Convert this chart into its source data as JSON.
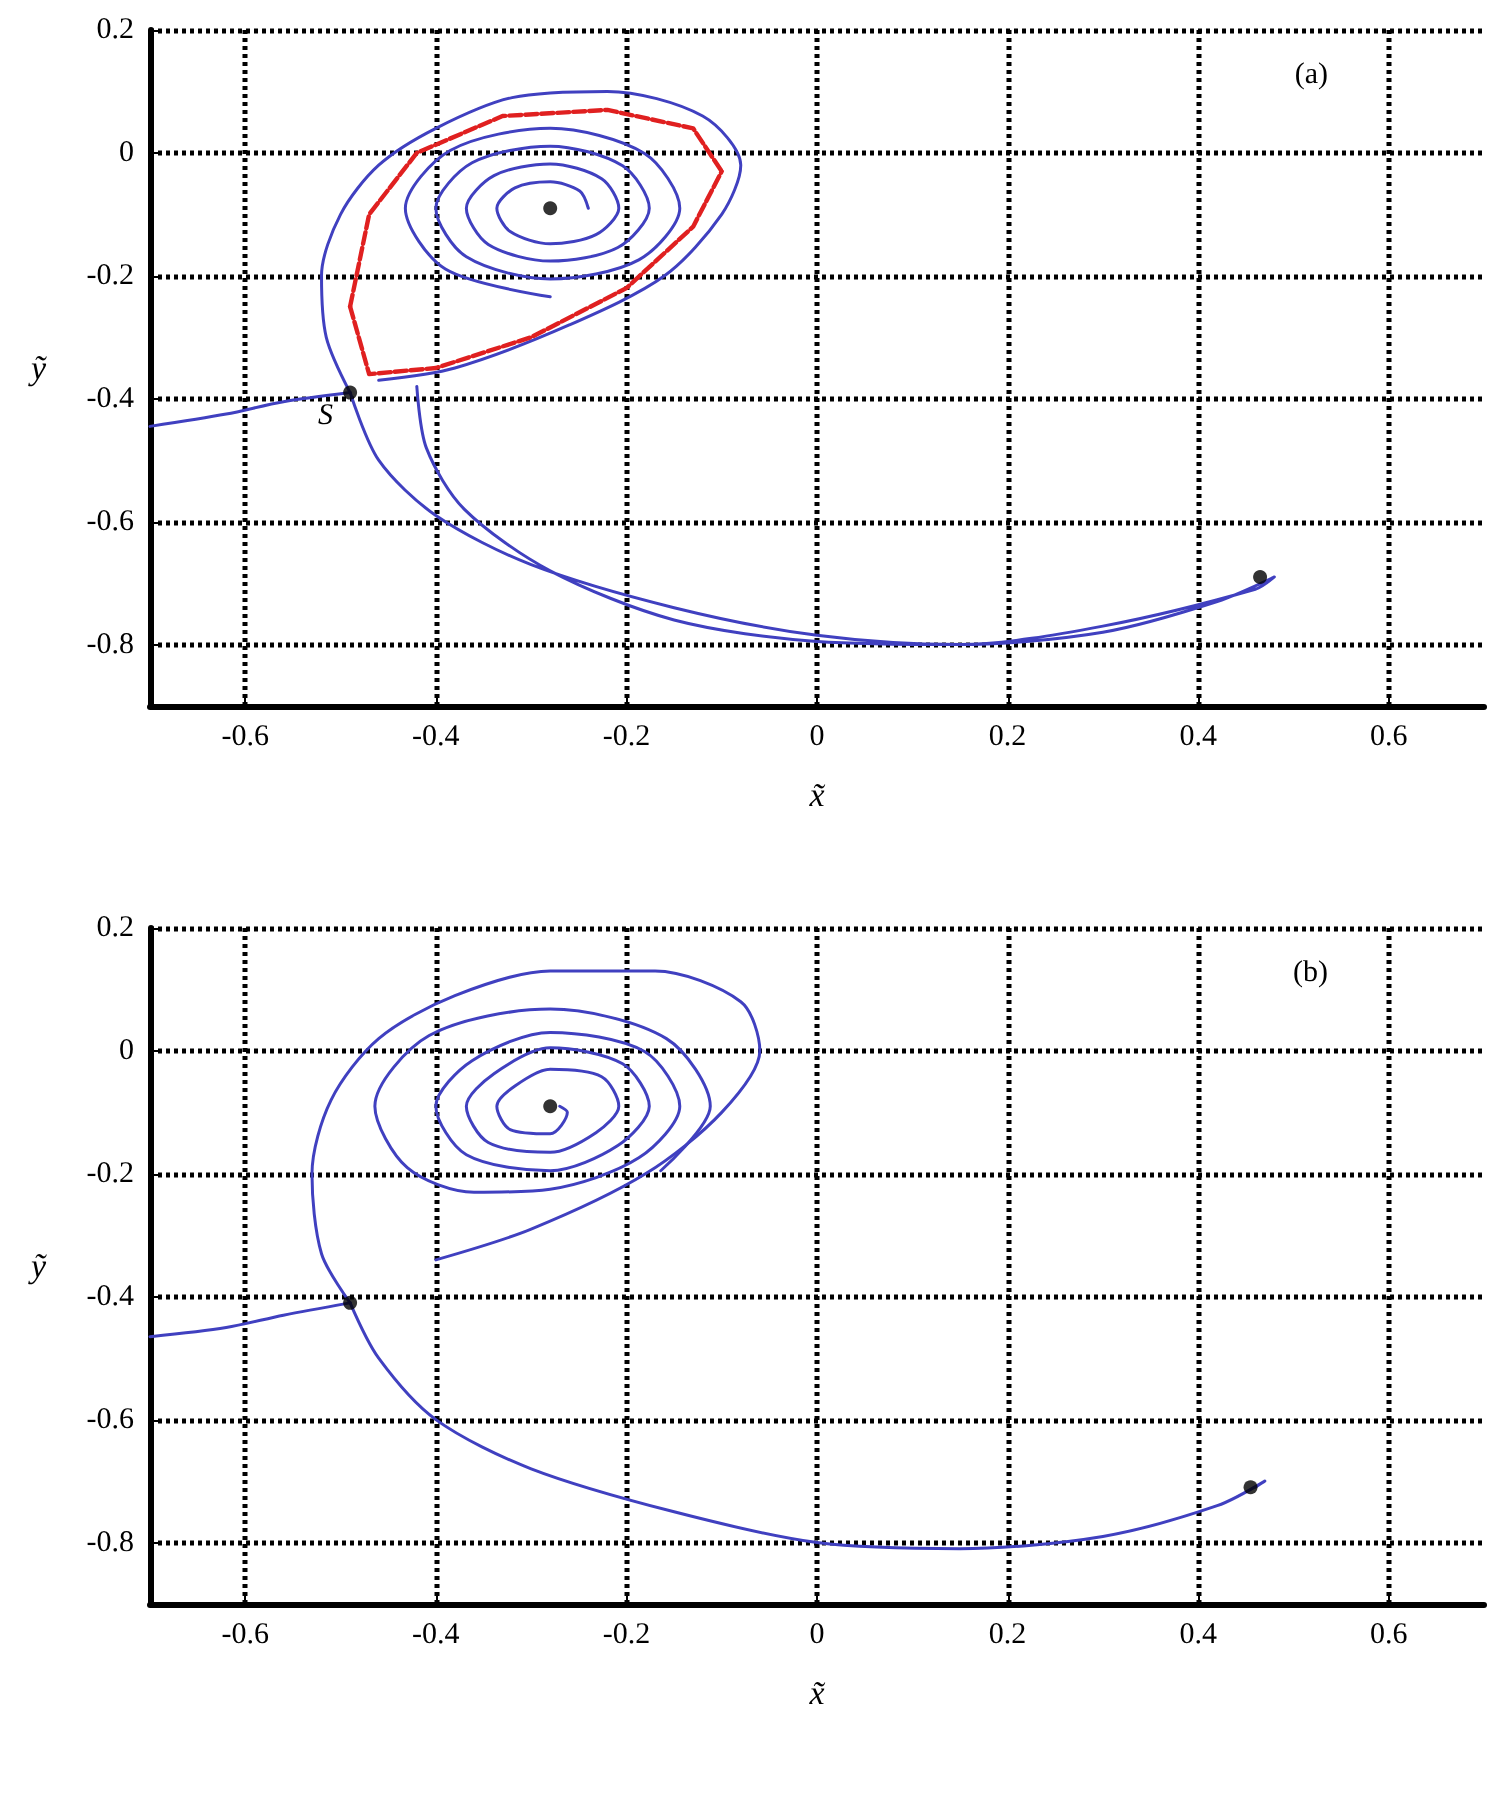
{
  "chart_data": [
    {
      "type": "line",
      "xlabel": "x̃",
      "ylabel": "ỹ",
      "xlim": [
        -0.7,
        0.7
      ],
      "ylim": [
        -0.9,
        0.2
      ],
      "xticks": [
        -0.6,
        -0.4,
        -0.2,
        0,
        0.2,
        0.4,
        0.6
      ],
      "yticks": [
        0.2,
        0,
        -0.2,
        -0.4,
        -0.6,
        -0.8
      ],
      "grid": true,
      "line_style": "solid",
      "annotations": [
        "(a)",
        {
          "text": "S",
          "x": -0.49,
          "y": -0.39
        }
      ],
      "series": [
        {
          "color": "#4040c0",
          "x": [
            -0.7,
            -0.62,
            -0.56,
            -0.49
          ],
          "values": [
            -0.445,
            -0.425,
            -0.405,
            -0.39
          ]
        },
        {
          "color": "#4040c0",
          "x": [
            -0.49,
            -0.515,
            -0.52,
            -0.5,
            -0.46,
            -0.4,
            -0.32,
            -0.22,
            -0.12,
            -0.08,
            -0.1,
            -0.16,
            -0.26,
            -0.38,
            -0.46
          ],
          "values": [
            -0.39,
            -0.3,
            -0.2,
            -0.1,
            -0.02,
            0.04,
            0.09,
            0.1,
            0.06,
            -0.02,
            -0.1,
            -0.2,
            -0.28,
            -0.35,
            -0.37
          ]
        },
        {
          "color": "#4040c0",
          "x": [
            -0.49,
            -0.46,
            -0.4,
            -0.3,
            -0.15,
            0,
            0.15,
            0.3,
            0.42,
            0.48,
            0.46,
            0.3,
            0.15,
            0,
            -0.15,
            -0.28,
            -0.37,
            -0.41,
            -0.42
          ],
          "values": [
            -0.39,
            -0.5,
            -0.59,
            -0.67,
            -0.74,
            -0.785,
            -0.8,
            -0.78,
            -0.73,
            -0.69,
            -0.71,
            -0.77,
            -0.8,
            -0.795,
            -0.76,
            -0.68,
            -0.58,
            -0.48,
            -0.38
          ]
        },
        {
          "color": "#4040c0",
          "x": [
            -0.24,
            -0.249,
            -0.28,
            -0.317,
            -0.336,
            -0.322,
            -0.28,
            -0.232,
            -0.208,
            -0.226,
            -0.28,
            -0.339,
            -0.368,
            -0.345,
            -0.28,
            -0.209,
            -0.176,
            -0.204,
            -0.28,
            -0.362,
            -0.4,
            -0.368,
            -0.28,
            -0.187,
            -0.144,
            -0.181,
            -0.28,
            -0.385,
            -0.432,
            -0.39,
            -0.28
          ],
          "values": [
            -0.09,
            -0.062,
            -0.047,
            -0.057,
            -0.09,
            -0.128,
            -0.148,
            -0.133,
            -0.09,
            -0.042,
            -0.018,
            -0.037,
            -0.09,
            -0.149,
            -0.176,
            -0.154,
            -0.09,
            -0.021,
            0.011,
            -0.016,
            -0.09,
            -0.169,
            -0.205,
            -0.174,
            -0.09,
            -0.001,
            0.04,
            0.004,
            -0.09,
            -0.189,
            -0.234
          ]
        },
        {
          "color": "#e02020",
          "line_style": "dashed",
          "x": [
            -0.49,
            -0.47,
            -0.42,
            -0.33,
            -0.22,
            -0.13,
            -0.1
          ],
          "values": [
            -0.25,
            -0.1,
            0,
            0.06,
            0.07,
            0.04,
            -0.03
          ]
        },
        {
          "color": "#e02020",
          "line_style": "dashed",
          "x": [
            -0.49,
            -0.47,
            -0.4,
            -0.3,
            -0.2,
            -0.13,
            -0.1
          ],
          "values": [
            -0.25,
            -0.36,
            -0.35,
            -0.3,
            -0.22,
            -0.12,
            -0.03
          ]
        },
        {
          "type": "scatter",
          "marker": "circle",
          "color": "#000000",
          "x": [
            -0.28,
            -0.49,
            0.465
          ],
          "values": [
            -0.09,
            -0.39,
            -0.69
          ]
        }
      ]
    },
    {
      "type": "line",
      "xlabel": "x̃",
      "ylabel": "ỹ",
      "xlim": [
        -0.7,
        0.7
      ],
      "ylim": [
        -0.9,
        0.2
      ],
      "xticks": [
        -0.6,
        -0.4,
        -0.2,
        0,
        0.2,
        0.4,
        0.6
      ],
      "yticks": [
        0.2,
        0,
        -0.2,
        -0.4,
        -0.6,
        -0.8
      ],
      "grid": true,
      "line_style": "solid",
      "annotations": [
        "(b)"
      ],
      "series": [
        {
          "color": "#4040c0",
          "x": [
            -0.7,
            -0.62,
            -0.56,
            -0.49
          ],
          "values": [
            -0.465,
            -0.45,
            -0.43,
            -0.41
          ]
        },
        {
          "color": "#4040c0",
          "x": [
            -0.49,
            -0.52,
            -0.53,
            -0.51,
            -0.46,
            -0.38,
            -0.28,
            -0.17,
            -0.08,
            -0.06,
            -0.1,
            -0.18,
            -0.3,
            -0.4
          ],
          "values": [
            -0.41,
            -0.33,
            -0.2,
            -0.08,
            0.02,
            0.09,
            0.13,
            0.13,
            0.08,
            0,
            -0.1,
            -0.2,
            -0.29,
            -0.34
          ]
        },
        {
          "color": "#4040c0",
          "x": [
            -0.49,
            -0.46,
            -0.4,
            -0.3,
            -0.15,
            0,
            0.15,
            0.3,
            0.42,
            0.47,
            0.46
          ],
          "values": [
            -0.41,
            -0.5,
            -0.6,
            -0.68,
            -0.75,
            -0.8,
            -0.81,
            -0.79,
            -0.74,
            -0.7,
            -0.71
          ]
        },
        {
          "color": "#4040c0",
          "x": [
            -0.164,
            -0.112,
            -0.158,
            -0.28,
            -0.407,
            -0.464,
            -0.43,
            -0.36,
            -0.28,
            -0.187,
            -0.144,
            -0.181,
            -0.28,
            -0.362,
            -0.4,
            -0.368,
            -0.28,
            -0.209,
            -0.176,
            -0.204,
            -0.28,
            -0.339,
            -0.368,
            -0.345,
            -0.28,
            -0.232,
            -0.208,
            -0.226,
            -0.28,
            -0.317,
            -0.336,
            -0.322,
            -0.28,
            -0.262,
            -0.27
          ],
          "values": [
            -0.195,
            -0.09,
            0.02,
            0.068,
            0.025,
            -0.09,
            -0.19,
            -0.23,
            -0.225,
            -0.174,
            -0.09,
            -0.001,
            0.03,
            -0.016,
            -0.09,
            -0.169,
            -0.195,
            -0.154,
            -0.09,
            -0.021,
            0.005,
            -0.037,
            -0.09,
            -0.149,
            -0.165,
            -0.133,
            -0.09,
            -0.042,
            -0.03,
            -0.057,
            -0.09,
            -0.128,
            -0.135,
            -0.1,
            -0.09
          ]
        },
        {
          "type": "scatter",
          "marker": "circle",
          "color": "#000000",
          "x": [
            -0.28,
            -0.49,
            0.455
          ],
          "values": [
            -0.09,
            -0.41,
            -0.71
          ]
        }
      ]
    }
  ]
}
